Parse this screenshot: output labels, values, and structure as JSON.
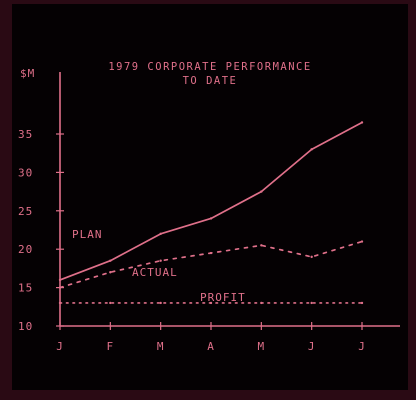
{
  "colors": {
    "ink": "#e0708a",
    "background": "#050103",
    "bezel": "#2a0a14"
  },
  "chart_data": {
    "type": "line",
    "title": [
      "1979 CORPORATE PERFORMANCE",
      "TO DATE"
    ],
    "ylabel": "$M",
    "xlabel": "",
    "categories": [
      "J",
      "F",
      "M",
      "A",
      "M",
      "J",
      "J"
    ],
    "yticks": [
      10,
      15,
      20,
      25,
      30,
      35
    ],
    "ylim": [
      10,
      40
    ],
    "grid": false,
    "legend": "inline labels",
    "series": [
      {
        "name": "PLAN",
        "style": "solid",
        "values": [
          16,
          18.5,
          22,
          24,
          27.5,
          33,
          36.5
        ]
      },
      {
        "name": "ACTUAL",
        "style": "dashed",
        "values": [
          15,
          17,
          18.5,
          19.5,
          20.5,
          19,
          21
        ]
      },
      {
        "name": "PROFIT",
        "style": "dotted",
        "values": [
          13,
          13,
          13,
          13,
          13,
          13,
          13
        ]
      }
    ]
  }
}
